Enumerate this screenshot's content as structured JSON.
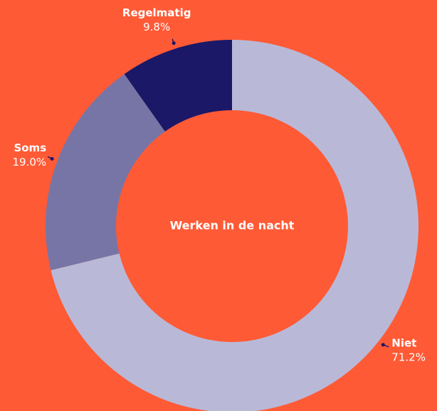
{
  "chart_data": {
    "type": "donut",
    "title": "Werken in de nacht",
    "categories": [
      "Niet",
      "Soms",
      "Regelmatig"
    ],
    "values": [
      71.2,
      19.0,
      9.8
    ],
    "value_labels": [
      "71.2%",
      "19.0%",
      "9.8%"
    ],
    "colors": [
      "#b9b9d7",
      "#7775a6",
      "#1b1868"
    ]
  }
}
